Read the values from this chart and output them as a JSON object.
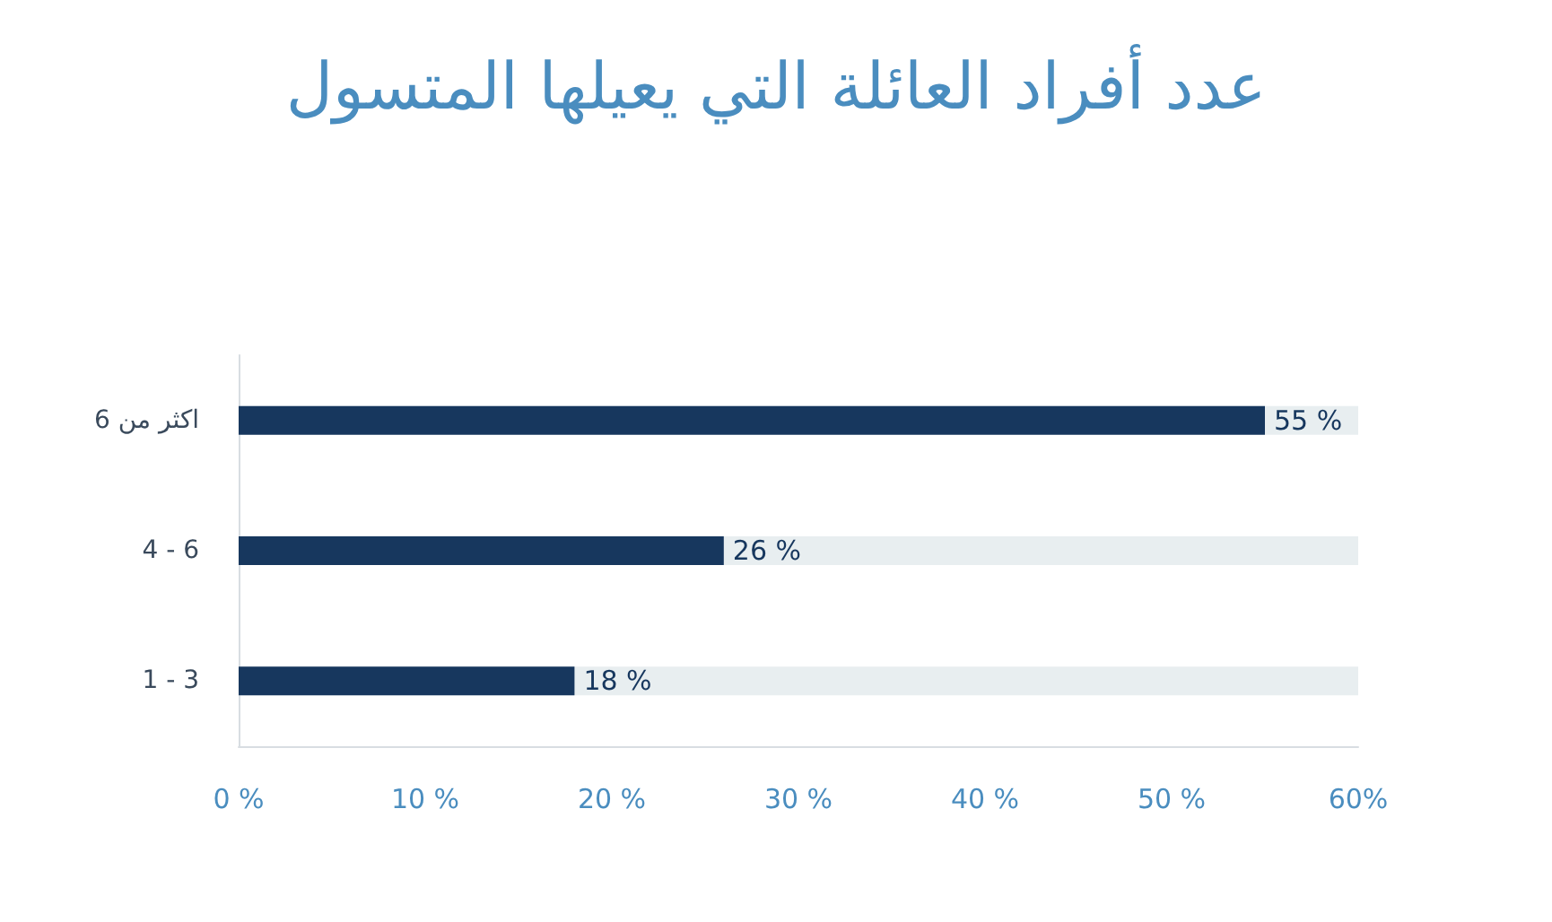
{
  "chart_data": {
    "type": "bar",
    "orientation": "horizontal",
    "title": "عدد أفراد العائلة التي يعيلها المتسول",
    "categories": [
      "اكثر من 6",
      "4 - 6",
      "1 - 3"
    ],
    "values": [
      55,
      26,
      18
    ],
    "color": "#17375e",
    "value_labels": [
      "55 %",
      "26 %",
      "18 %"
    ],
    "xlim": [
      0,
      60
    ],
    "xticks": [
      {
        "value": 0,
        "label": "0 %"
      },
      {
        "value": 10,
        "label": "10 %"
      },
      {
        "value": 20,
        "label": "20 %"
      },
      {
        "value": 30,
        "label": "30 %"
      },
      {
        "value": 40,
        "label": "40 %"
      },
      {
        "value": 50,
        "label": "50 %"
      },
      {
        "value": 60,
        "label": "60%"
      }
    ],
    "grid": false
  }
}
